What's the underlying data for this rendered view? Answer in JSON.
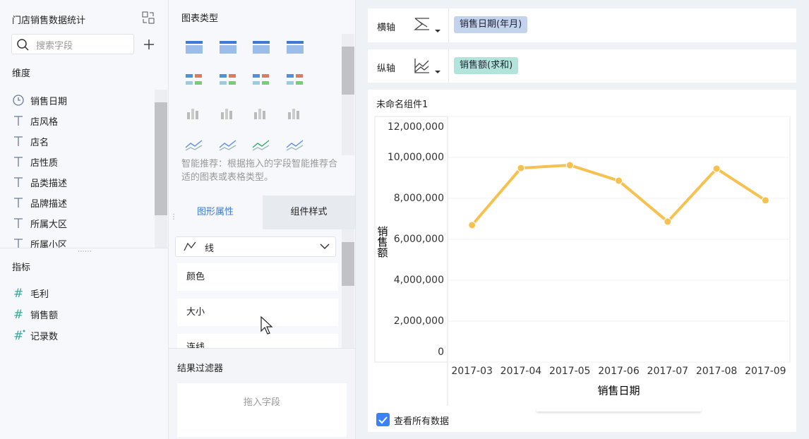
{
  "left_panel": {
    "title": "门店销售数据统计",
    "search_placeholder": "搜索字段",
    "dimensions_title": "维度",
    "dimensions": [
      "销售日期",
      "店风格",
      "店名",
      "店性质",
      "品类描述",
      "品牌描述",
      "所属大区",
      "所属小区"
    ],
    "measures_title": "指标",
    "measures": [
      "毛利",
      "销售额",
      "记录数"
    ]
  },
  "middle_panel": {
    "chart_type_title": "图表类型",
    "recommendation": "智能推荐：根据拖入的字段智能推荐合适的图表或表格类型。",
    "tabs": [
      "图形属性",
      "组件样式"
    ],
    "mark_type": "线",
    "properties": [
      "颜色",
      "大小",
      "连线"
    ],
    "filter_title": "结果过滤器",
    "filter_placeholder": "拖入字段"
  },
  "axis_config": {
    "x_label": "横轴",
    "x_field": "销售日期(年月)",
    "y_label": "纵轴",
    "y_field": "销售额(求和)"
  },
  "widget": {
    "title": "未命名组件1",
    "view_all": "查看所有数据"
  },
  "chart_data": {
    "type": "line",
    "x_label": "销售日期",
    "y_label": "销售额",
    "categories": [
      "2017-03",
      "2017-04",
      "2017-05",
      "2017-06",
      "2017-07",
      "2017-08",
      "2017-09"
    ],
    "values": [
      6690000,
      9480000,
      9620000,
      8860000,
      6860000,
      9450000,
      7900000
    ],
    "color": "#f6c14f",
    "ylim": [
      0,
      12000000
    ],
    "yticks": [
      0,
      {
        "value": 2000000,
        "label": "2,000,000"
      },
      {
        "value": 4000000,
        "label": "4,000,000"
      },
      {
        "value": 6000000,
        "label": "6,000,000"
      },
      {
        "value": 8000000,
        "label": "8,000,000"
      },
      {
        "value": 10000000,
        "label": "10,000,000"
      },
      {
        "value": 12000000,
        "label": "12,000,000"
      }
    ],
    "grid": true
  }
}
